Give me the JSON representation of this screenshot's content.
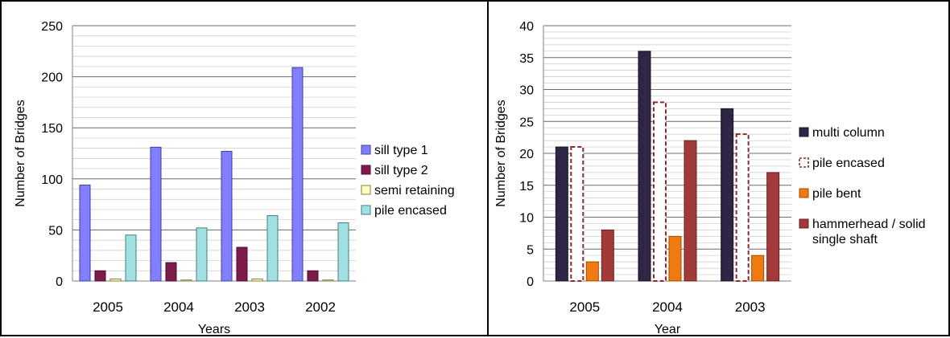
{
  "chart_data": [
    {
      "type": "bar",
      "title": "",
      "xlabel": "Years",
      "ylabel": "Number of Bridges",
      "ylim": [
        0,
        250
      ],
      "yticks": [
        0,
        50,
        100,
        150,
        200,
        250
      ],
      "grid": true,
      "legend_position": "right",
      "categories": [
        "2005",
        "2004",
        "2003",
        "2002"
      ],
      "series": [
        {
          "name": "sill type 1",
          "values": [
            94,
            131,
            127,
            209
          ],
          "color": "#7f7fff",
          "stroke": "#4040a0"
        },
        {
          "name": "sill type 2",
          "values": [
            10,
            18,
            33,
            10
          ],
          "color": "#7f1a4c",
          "stroke": "#4a0f2e"
        },
        {
          "name": "semi retaining",
          "values": [
            2,
            1,
            2,
            1
          ],
          "color": "#ffffc0",
          "stroke": "#808040"
        },
        {
          "name": "pile encased",
          "values": [
            45,
            52,
            64,
            57
          ],
          "color": "#a0e0e0",
          "stroke": "#408080"
        }
      ]
    },
    {
      "type": "bar",
      "title": "",
      "xlabel": "Year",
      "ylabel": "Number of Bridges",
      "ylim": [
        0,
        40
      ],
      "yticks": [
        0,
        5,
        10,
        15,
        20,
        25,
        30,
        35,
        40
      ],
      "grid": true,
      "legend_position": "right",
      "categories": [
        "2005",
        "2004",
        "2003"
      ],
      "series": [
        {
          "name": "multi column",
          "values": [
            21,
            36,
            27
          ],
          "color": "#2f2545",
          "stroke": "#1a1428",
          "style": "solid"
        },
        {
          "name": "pile encased",
          "values": [
            21,
            28,
            23
          ],
          "color": "#ffffff",
          "stroke": "#8b2a2a",
          "style": "dashed"
        },
        {
          "name": "pile bent",
          "values": [
            3,
            7,
            4
          ],
          "color": "#f07a10",
          "stroke": "#a04f00",
          "style": "solid"
        },
        {
          "name": "hammerhead / solid single shaft",
          "legend_lines": [
            "hammerhead / solid",
            "single shaft"
          ],
          "values": [
            8,
            22,
            17
          ],
          "color": "#a33a3a",
          "stroke": "#6a2020",
          "style": "solid"
        }
      ]
    }
  ]
}
